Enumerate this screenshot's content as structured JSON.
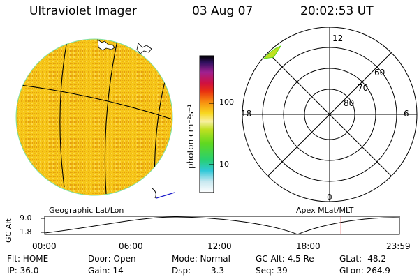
{
  "header": {
    "title": "Ultraviolet Imager",
    "date": "03 Aug 07",
    "time": "20:02:53 UT"
  },
  "colorbar": {
    "unit_label": "photon cm⁻²s⁻¹",
    "ticks": [
      "100",
      "10"
    ]
  },
  "polar": {
    "hour_labels": {
      "top": "12",
      "left": "18",
      "right": "6",
      "bottom": "0"
    },
    "lat_labels": [
      "60",
      "70",
      "80"
    ]
  },
  "panel_labels": {
    "left": "Geographic Lat/Lon",
    "right": "Apex MLat/MLT"
  },
  "altitude_plot": {
    "ylabel": "GC Alt",
    "ymax": "9.0",
    "ymin": "1.8",
    "time_ticks": [
      "00:00",
      "06:00",
      "12:00",
      "18:00",
      "23:59"
    ],
    "marker_time_hours": 20.05
  },
  "status": {
    "flt": "Flt: HOME",
    "ip": "IP: 36.0",
    "door": "Door: Open",
    "gain": "Gain: 14",
    "mode": "Mode: Normal",
    "dsp_label": "Dsp:",
    "dsp_value": "3.3",
    "gc_alt": "GC Alt: 4.5 Re",
    "seq": "Seq: 39",
    "glat": "GLat: -48.2",
    "glon": "GLon: 264.9"
  },
  "colors": {
    "disk_fill": "#f6c619",
    "disk_speckle": "#e6a40f",
    "disk_edge": "#7ee0a0",
    "marker": "#e00000",
    "track": "#2020cc"
  }
}
